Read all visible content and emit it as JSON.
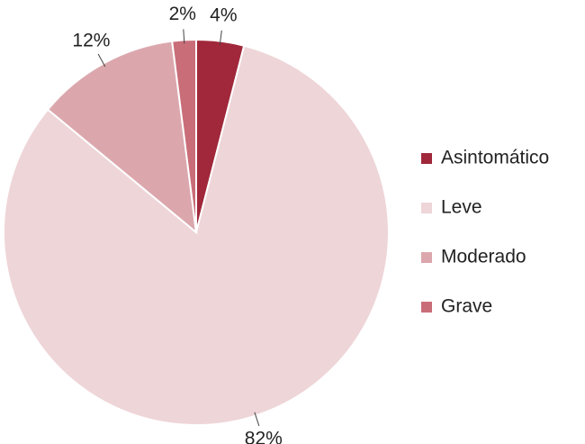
{
  "chart_data": {
    "type": "pie",
    "categories": [
      "Asintomático",
      "Leve",
      "Moderado",
      "Grave"
    ],
    "values": [
      4,
      82,
      12,
      2
    ],
    "value_labels": [
      "4%",
      "82%",
      "12%",
      "2%"
    ],
    "colors": [
      "#a0283a",
      "#eed5d8",
      "#dba7ad",
      "#c96d79"
    ],
    "legend": "right"
  }
}
